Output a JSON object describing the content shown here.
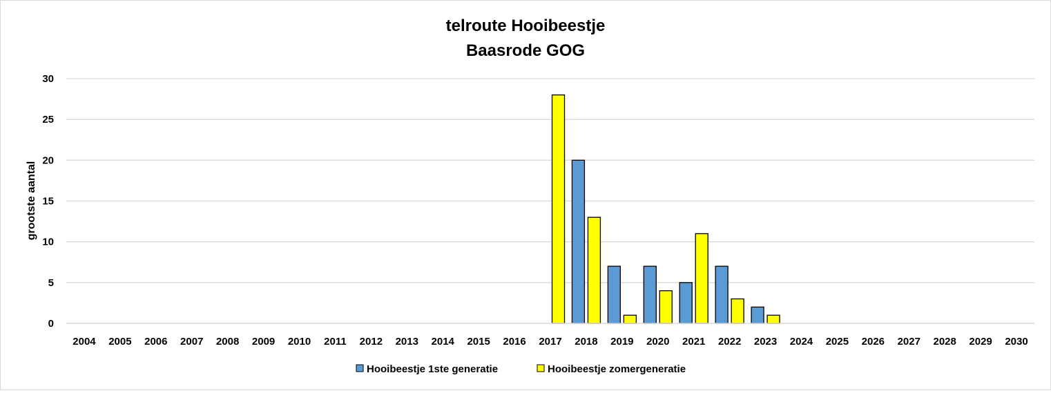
{
  "chart_data": {
    "type": "bar",
    "title": "telroute Hooibeestje",
    "subtitle": "Baasrode GOG",
    "xlabel": "",
    "ylabel": "grootste aantal",
    "ylim": [
      0,
      30
    ],
    "yticks": [
      0,
      5,
      10,
      15,
      20,
      25,
      30
    ],
    "grid": true,
    "legend_position": "bottom",
    "categories": [
      "2004",
      "2005",
      "2006",
      "2007",
      "2008",
      "2009",
      "2010",
      "2011",
      "2012",
      "2013",
      "2014",
      "2015",
      "2016",
      "2017",
      "2018",
      "2019",
      "2020",
      "2021",
      "2022",
      "2023",
      "2024",
      "2025",
      "2026",
      "2027",
      "2028",
      "2029",
      "2030"
    ],
    "series": [
      {
        "name": "Hooibeestje 1ste generatie",
        "color": "#5b9bd5",
        "values": [
          null,
          null,
          null,
          null,
          null,
          null,
          null,
          null,
          null,
          null,
          null,
          null,
          null,
          null,
          20,
          7,
          7,
          5,
          7,
          2,
          null,
          null,
          null,
          null,
          null,
          null,
          null
        ]
      },
      {
        "name": "Hooibeestje zomergeneratie",
        "color": "#ffff00",
        "values": [
          null,
          null,
          null,
          null,
          null,
          null,
          null,
          null,
          null,
          null,
          null,
          null,
          null,
          28,
          13,
          1,
          4,
          11,
          3,
          1,
          null,
          null,
          null,
          null,
          null,
          null,
          null
        ]
      }
    ]
  }
}
